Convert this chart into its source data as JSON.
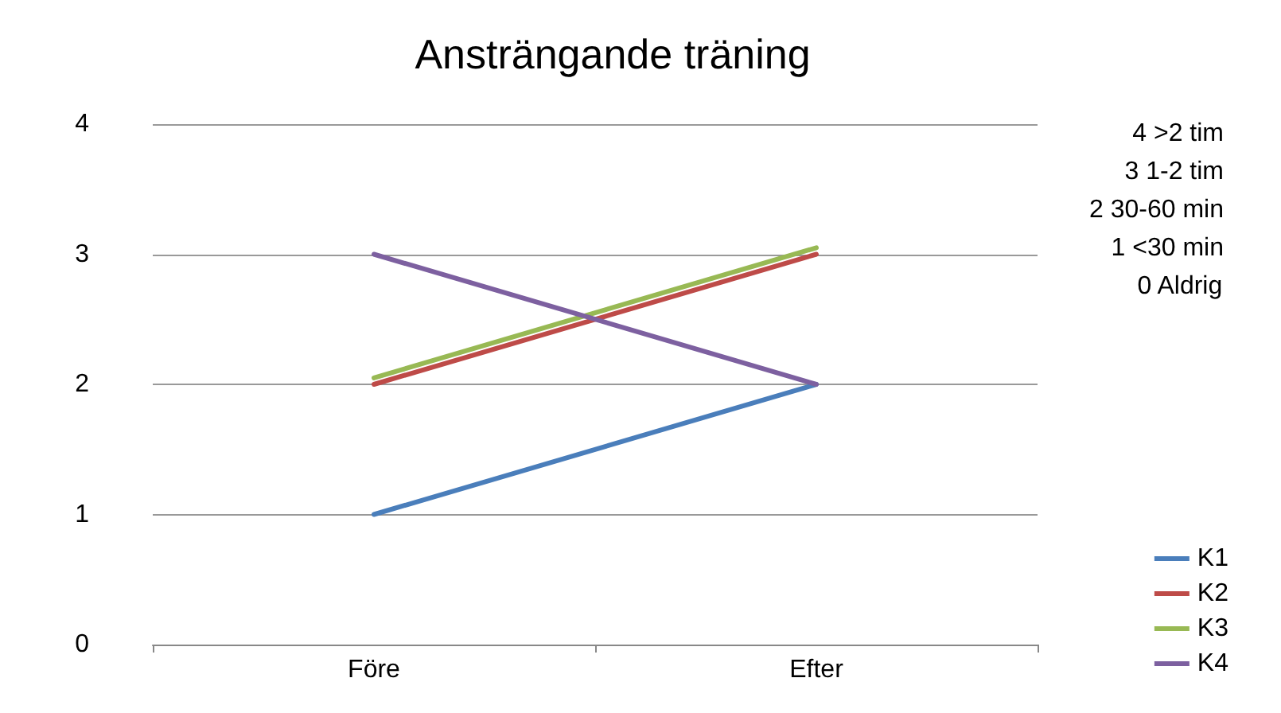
{
  "chart_data": {
    "type": "line",
    "title": "Ansträngande träning",
    "categories": [
      "Före",
      "Efter"
    ],
    "series": [
      {
        "name": "K1",
        "color": "#4a7ebb",
        "values": [
          1,
          2
        ]
      },
      {
        "name": "K2",
        "color": "#be4b48",
        "values": [
          2,
          3
        ]
      },
      {
        "name": "K3",
        "color": "#98b954",
        "values": [
          2.05,
          3.05
        ]
      },
      {
        "name": "K4",
        "color": "#7d60a0",
        "values": [
          3,
          2
        ]
      }
    ],
    "ylim": [
      0,
      4
    ],
    "yticks": [
      0,
      1,
      2,
      3,
      4
    ],
    "grid": "y",
    "legend": "bottom right",
    "marker": "none",
    "line_style": "solid",
    "annotations": [
      "4 >2 tim",
      "3 1-2 tim",
      "2 30-60 min",
      "1 <30 min",
      "0 Aldrig"
    ]
  }
}
